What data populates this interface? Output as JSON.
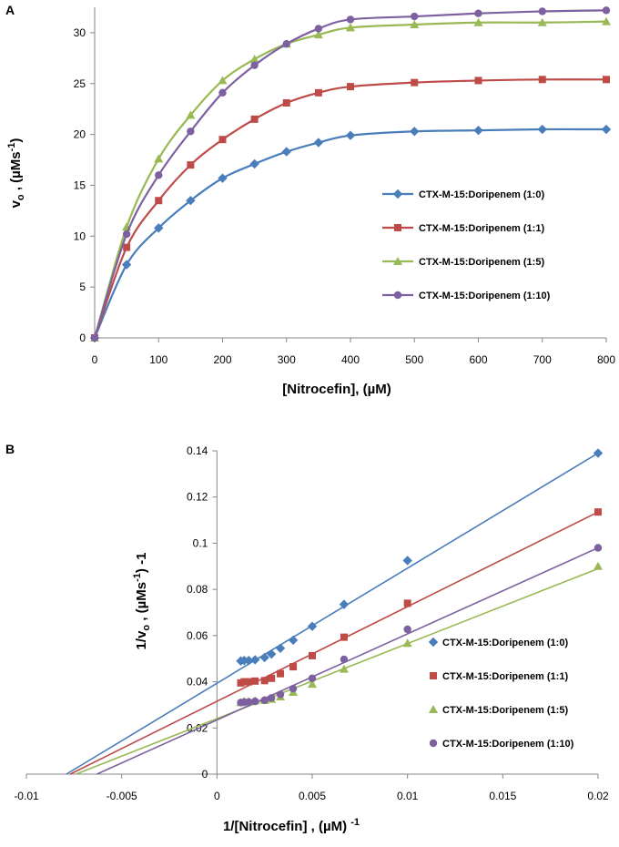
{
  "chart_data": [
    {
      "panel": "A",
      "type": "line",
      "xlabel": "[Nitrocefin], (µM)",
      "ylabel": {
        "pre": "v",
        "sub": "o",
        "mid": " , (µMs",
        "sup": "-1",
        "post": ")"
      },
      "xlim": [
        0,
        800
      ],
      "ylim": [
        0,
        32.5
      ],
      "xticks": [
        0,
        100,
        200,
        300,
        400,
        500,
        600,
        700,
        800
      ],
      "yticks": [
        0,
        5,
        10,
        15,
        20,
        25,
        30
      ],
      "legend_position": "right",
      "series": [
        {
          "name": "CTX-M-15:Doripenem (1:0)",
          "color": "#4a7ebb",
          "marker": "diamond",
          "x": [
            0,
            50,
            100,
            150,
            200,
            250,
            300,
            350,
            400,
            500,
            600,
            700,
            800
          ],
          "y": [
            0,
            7.2,
            10.8,
            13.5,
            15.7,
            17.1,
            18.3,
            19.2,
            19.9,
            20.3,
            20.4,
            20.5,
            20.5
          ]
        },
        {
          "name": "CTX-M-15:Doripenem (1:1)",
          "color": "#be4b48",
          "marker": "square",
          "x": [
            0,
            50,
            100,
            150,
            200,
            250,
            300,
            350,
            400,
            500,
            600,
            700,
            800
          ],
          "y": [
            0,
            8.9,
            13.5,
            17.0,
            19.5,
            21.5,
            23.1,
            24.1,
            24.7,
            25.1,
            25.3,
            25.4,
            25.4
          ]
        },
        {
          "name": "CTX-M-15:Doripenem (1:5)",
          "color": "#98b954",
          "marker": "triangle",
          "x": [
            0,
            50,
            100,
            150,
            200,
            250,
            300,
            350,
            400,
            500,
            600,
            700,
            800
          ],
          "y": [
            0,
            10.9,
            17.6,
            21.9,
            25.3,
            27.4,
            28.9,
            29.8,
            30.5,
            30.8,
            31.0,
            31.0,
            31.1
          ]
        },
        {
          "name": "CTX-M-15:Doripenem (1:10)",
          "color": "#7d60a0",
          "marker": "circle",
          "x": [
            0,
            50,
            100,
            150,
            200,
            250,
            300,
            350,
            400,
            500,
            600,
            700,
            800
          ],
          "y": [
            0,
            10.2,
            16.0,
            20.3,
            24.1,
            26.8,
            28.9,
            30.4,
            31.3,
            31.6,
            31.9,
            32.1,
            32.2
          ]
        }
      ]
    },
    {
      "panel": "B",
      "type": "scatter",
      "xlabel": {
        "pre": "1/[Nitrocefin] , (µM) ",
        "sup": "-1"
      },
      "ylabel": {
        "pre": "1/v",
        "sub": "o",
        "mid": " , (µMs",
        "sup": "-1",
        "post": ")",
        "tail": " -1"
      },
      "xlim": [
        -0.01,
        0.02
      ],
      "ylim": [
        0,
        0.14
      ],
      "xticks": [
        -0.01,
        -0.005,
        0,
        0.005,
        0.01,
        0.015,
        0.02
      ],
      "yticks": [
        0,
        0.02,
        0.04,
        0.06,
        0.08,
        0.1,
        0.12,
        0.14
      ],
      "legend_position": "right",
      "series": [
        {
          "name": "CTX-M-15:Doripenem (1:0)",
          "color": "#4a7ebb",
          "marker": "diamond",
          "x": [
            0.00125,
            0.00143,
            0.00167,
            0.002,
            0.0025,
            0.00286,
            0.00333,
            0.004,
            0.005,
            0.00667,
            0.01,
            0.02
          ],
          "y": [
            0.049,
            0.0492,
            0.0492,
            0.0495,
            0.0505,
            0.052,
            0.0545,
            0.058,
            0.064,
            0.0735,
            0.0925,
            0.139
          ],
          "fit": {
            "x1": -0.0079,
            "y1": 0,
            "x2": 0.02,
            "y2": 0.139
          }
        },
        {
          "name": "CTX-M-15:Doripenem (1:1)",
          "color": "#be4b48",
          "marker": "square",
          "x": [
            0.00125,
            0.00143,
            0.00167,
            0.002,
            0.0025,
            0.00286,
            0.00333,
            0.004,
            0.005,
            0.00667,
            0.01,
            0.02
          ],
          "y": [
            0.0395,
            0.04,
            0.04,
            0.0403,
            0.0405,
            0.0415,
            0.0435,
            0.0465,
            0.0513,
            0.0593,
            0.074,
            0.1135
          ],
          "fit": {
            "x1": -0.0077,
            "y1": 0,
            "x2": 0.02,
            "y2": 0.1135
          }
        },
        {
          "name": "CTX-M-15:Doripenem (1:5)",
          "color": "#98b954",
          "marker": "triangle",
          "x": [
            0.00125,
            0.00143,
            0.00167,
            0.002,
            0.0025,
            0.00286,
            0.00333,
            0.004,
            0.005,
            0.00667,
            0.01,
            0.02
          ],
          "y": [
            0.031,
            0.0315,
            0.0315,
            0.0318,
            0.032,
            0.0325,
            0.0335,
            0.0355,
            0.039,
            0.0455,
            0.0567,
            0.09
          ],
          "fit": {
            "x1": -0.0074,
            "y1": 0,
            "x2": 0.02,
            "y2": 0.089
          }
        },
        {
          "name": "CTX-M-15:Doripenem (1:10)",
          "color": "#7d60a0",
          "marker": "circle",
          "x": [
            0.00125,
            0.00143,
            0.00167,
            0.002,
            0.0025,
            0.00286,
            0.00333,
            0.004,
            0.005,
            0.00667,
            0.01,
            0.02
          ],
          "y": [
            0.031,
            0.0312,
            0.0312,
            0.0315,
            0.032,
            0.033,
            0.0345,
            0.037,
            0.0415,
            0.0497,
            0.0627,
            0.098
          ],
          "fit": {
            "x1": -0.0063,
            "y1": 0,
            "x2": 0.02,
            "y2": 0.098
          }
        }
      ]
    }
  ]
}
